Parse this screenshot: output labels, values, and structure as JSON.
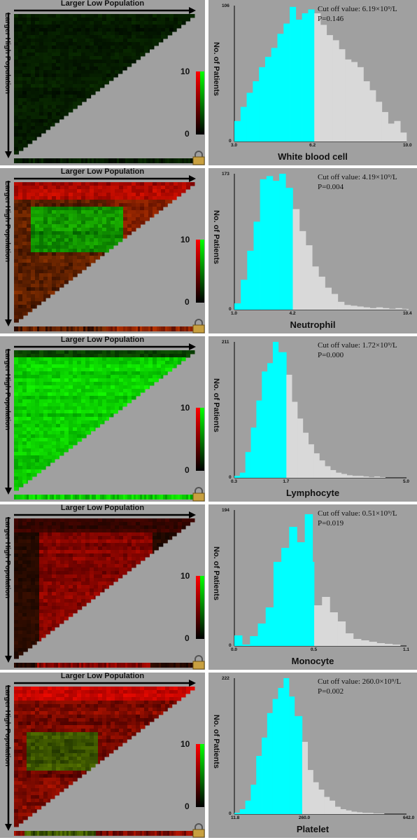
{
  "colors": {
    "panel_bg": "#a0a0a0",
    "below_cutoff": "#00ffff",
    "above_cutoff": "#d9d9d9",
    "heat_low": "#000000",
    "heat_red": "#ff0000",
    "heat_green": "#00ff00"
  },
  "icons": {
    "lock": "padlock-icon"
  },
  "common": {
    "larger_low": "Larger Low Population",
    "larger_high": "Larger High Population",
    "ylabel": "No. of Patients",
    "scale_max": "10",
    "scale_min": "0"
  },
  "chart_data": [
    {
      "type": "bar",
      "xlabel": "White blood cell",
      "ylabel": "No. of Patients",
      "cutoff_text": "Cut off value: 6.19×10⁹/L",
      "p_text": "P=0.146",
      "x_ticks": [
        "3.0",
        "6.2",
        "10.0"
      ],
      "x_range": [
        3.0,
        10.0
      ],
      "cutoff": 6.19,
      "ymax_label": "106",
      "y_zero": "0",
      "ylim": [
        0,
        106
      ],
      "bins": [
        {
          "x": 3.0,
          "v": 16
        },
        {
          "x": 3.25,
          "v": 27
        },
        {
          "x": 3.5,
          "v": 38
        },
        {
          "x": 3.75,
          "v": 47
        },
        {
          "x": 4.0,
          "v": 58
        },
        {
          "x": 4.25,
          "v": 66
        },
        {
          "x": 4.5,
          "v": 73
        },
        {
          "x": 4.75,
          "v": 84
        },
        {
          "x": 5.0,
          "v": 92
        },
        {
          "x": 5.25,
          "v": 105
        },
        {
          "x": 5.5,
          "v": 95
        },
        {
          "x": 5.75,
          "v": 100
        },
        {
          "x": 6.0,
          "v": 103
        },
        {
          "x": 6.25,
          "v": 100
        },
        {
          "x": 6.5,
          "v": 91
        },
        {
          "x": 6.75,
          "v": 83
        },
        {
          "x": 7.0,
          "v": 79
        },
        {
          "x": 7.25,
          "v": 72
        },
        {
          "x": 7.5,
          "v": 64
        },
        {
          "x": 7.75,
          "v": 62
        },
        {
          "x": 8.0,
          "v": 58
        },
        {
          "x": 8.25,
          "v": 47
        },
        {
          "x": 8.5,
          "v": 40
        },
        {
          "x": 8.75,
          "v": 31
        },
        {
          "x": 9.0,
          "v": 23
        },
        {
          "x": 9.25,
          "v": 14
        },
        {
          "x": 9.5,
          "v": 16
        },
        {
          "x": 9.75,
          "v": 7
        }
      ]
    },
    {
      "type": "bar",
      "xlabel": "Neutrophil",
      "ylabel": "No. of Patients",
      "cutoff_text": "Cut off value: 4.19×10⁹/L",
      "p_text": "P=0.004",
      "x_ticks": [
        "1.0",
        "4.2",
        "10.4"
      ],
      "x_range": [
        1.0,
        10.4
      ],
      "cutoff": 4.19,
      "ymax_label": "173",
      "y_zero": "0",
      "ylim": [
        0,
        173
      ],
      "bins": [
        {
          "x": 1.0,
          "v": 8
        },
        {
          "x": 1.35,
          "v": 38
        },
        {
          "x": 1.7,
          "v": 75
        },
        {
          "x": 2.05,
          "v": 112
        },
        {
          "x": 2.4,
          "v": 166
        },
        {
          "x": 2.75,
          "v": 170
        },
        {
          "x": 3.1,
          "v": 164
        },
        {
          "x": 3.45,
          "v": 173
        },
        {
          "x": 3.8,
          "v": 155
        },
        {
          "x": 4.19,
          "v": 128
        },
        {
          "x": 4.55,
          "v": 100
        },
        {
          "x": 4.9,
          "v": 82
        },
        {
          "x": 5.25,
          "v": 55
        },
        {
          "x": 5.6,
          "v": 42
        },
        {
          "x": 5.95,
          "v": 28
        },
        {
          "x": 6.3,
          "v": 20
        },
        {
          "x": 6.65,
          "v": 10
        },
        {
          "x": 7.0,
          "v": 6
        },
        {
          "x": 7.35,
          "v": 5
        },
        {
          "x": 7.7,
          "v": 4
        },
        {
          "x": 8.05,
          "v": 3
        },
        {
          "x": 8.4,
          "v": 2
        },
        {
          "x": 8.75,
          "v": 3
        },
        {
          "x": 9.1,
          "v": 2
        },
        {
          "x": 9.45,
          "v": 1
        },
        {
          "x": 9.8,
          "v": 2
        },
        {
          "x": 10.15,
          "v": 1
        }
      ]
    },
    {
      "type": "bar",
      "xlabel": "Lymphocyte",
      "ylabel": "No. of Patients",
      "cutoff_text": "Cut off value: 1.72×10⁹/L",
      "p_text": "P=0.000",
      "x_ticks": [
        "0.3",
        "1.7",
        "5.0"
      ],
      "x_range": [
        0.3,
        5.0
      ],
      "cutoff": 1.72,
      "ymax_label": "211",
      "y_zero": "0",
      "ylim": [
        0,
        211
      ],
      "bins": [
        {
          "x": 0.3,
          "v": 3
        },
        {
          "x": 0.45,
          "v": 8
        },
        {
          "x": 0.6,
          "v": 40
        },
        {
          "x": 0.75,
          "v": 78
        },
        {
          "x": 0.9,
          "v": 120
        },
        {
          "x": 1.05,
          "v": 165
        },
        {
          "x": 1.2,
          "v": 178
        },
        {
          "x": 1.35,
          "v": 211
        },
        {
          "x": 1.5,
          "v": 195
        },
        {
          "x": 1.72,
          "v": 160
        },
        {
          "x": 1.87,
          "v": 118
        },
        {
          "x": 2.02,
          "v": 92
        },
        {
          "x": 2.17,
          "v": 70
        },
        {
          "x": 2.32,
          "v": 52
        },
        {
          "x": 2.47,
          "v": 38
        },
        {
          "x": 2.62,
          "v": 27
        },
        {
          "x": 2.77,
          "v": 18
        },
        {
          "x": 2.92,
          "v": 12
        },
        {
          "x": 3.07,
          "v": 8
        },
        {
          "x": 3.22,
          "v": 6
        },
        {
          "x": 3.37,
          "v": 4
        },
        {
          "x": 3.52,
          "v": 3
        },
        {
          "x": 3.67,
          "v": 3
        },
        {
          "x": 3.82,
          "v": 2
        },
        {
          "x": 3.97,
          "v": 1
        },
        {
          "x": 4.12,
          "v": 2
        },
        {
          "x": 4.27,
          "v": 1
        }
      ]
    },
    {
      "type": "bar",
      "xlabel": "Monocyte",
      "ylabel": "No. of Patients",
      "cutoff_text": "Cut off value: 0.51×10⁹/L",
      "p_text": "P=0.019",
      "x_ticks": [
        "0.0",
        "0.5",
        "1.1"
      ],
      "x_range": [
        0.0,
        1.1
      ],
      "cutoff": 0.51,
      "ymax_label": "194",
      "y_zero": "0",
      "ylim": [
        0,
        194
      ],
      "bins": [
        {
          "x": 0.0,
          "v": 15
        },
        {
          "x": 0.05,
          "v": 2
        },
        {
          "x": 0.1,
          "v": 14
        },
        {
          "x": 0.15,
          "v": 32
        },
        {
          "x": 0.2,
          "v": 55
        },
        {
          "x": 0.25,
          "v": 120
        },
        {
          "x": 0.3,
          "v": 140
        },
        {
          "x": 0.35,
          "v": 170
        },
        {
          "x": 0.4,
          "v": 148
        },
        {
          "x": 0.45,
          "v": 188
        },
        {
          "x": 0.5,
          "v": 120
        },
        {
          "x": 0.51,
          "v": 58
        },
        {
          "x": 0.56,
          "v": 70
        },
        {
          "x": 0.61,
          "v": 48
        },
        {
          "x": 0.66,
          "v": 35
        },
        {
          "x": 0.71,
          "v": 18
        },
        {
          "x": 0.76,
          "v": 10
        },
        {
          "x": 0.81,
          "v": 8
        },
        {
          "x": 0.86,
          "v": 6
        },
        {
          "x": 0.91,
          "v": 4
        },
        {
          "x": 0.96,
          "v": 3
        },
        {
          "x": 1.01,
          "v": 2
        }
      ]
    },
    {
      "type": "bar",
      "xlabel": "Platelet",
      "ylabel": "No. of Patients",
      "cutoff_text": "Cut off value: 260.0×10⁹/L",
      "p_text": "P=0.002",
      "x_ticks": [
        "11.8",
        "260.0",
        "642.0"
      ],
      "x_range": [
        11.8,
        642.0
      ],
      "cutoff": 260.0,
      "ymax_label": "222",
      "y_zero": "0",
      "ylim": [
        0,
        222
      ],
      "bins": [
        {
          "x": 11.8,
          "v": 2
        },
        {
          "x": 31.8,
          "v": 8
        },
        {
          "x": 51.8,
          "v": 22
        },
        {
          "x": 71.8,
          "v": 48
        },
        {
          "x": 91.8,
          "v": 95
        },
        {
          "x": 111.8,
          "v": 125
        },
        {
          "x": 131.8,
          "v": 165
        },
        {
          "x": 151.8,
          "v": 188
        },
        {
          "x": 171.8,
          "v": 206
        },
        {
          "x": 191.8,
          "v": 222
        },
        {
          "x": 211.8,
          "v": 192
        },
        {
          "x": 231.8,
          "v": 160
        },
        {
          "x": 260.0,
          "v": 118
        },
        {
          "x": 280.0,
          "v": 72
        },
        {
          "x": 300.0,
          "v": 52
        },
        {
          "x": 320.0,
          "v": 40
        },
        {
          "x": 340.0,
          "v": 28
        },
        {
          "x": 360.0,
          "v": 22
        },
        {
          "x": 380.0,
          "v": 12
        },
        {
          "x": 400.0,
          "v": 8
        },
        {
          "x": 420.0,
          "v": 6
        },
        {
          "x": 440.0,
          "v": 4
        },
        {
          "x": 460.0,
          "v": 3
        },
        {
          "x": 480.0,
          "v": 2
        },
        {
          "x": 500.0,
          "v": 2
        },
        {
          "x": 520.0,
          "v": 1
        },
        {
          "x": 540.0,
          "v": 1
        }
      ]
    }
  ],
  "heatmaps": [
    {
      "style": "dark"
    },
    {
      "style": "redgreen"
    },
    {
      "style": "green"
    },
    {
      "style": "redmid"
    },
    {
      "style": "redtop"
    }
  ]
}
